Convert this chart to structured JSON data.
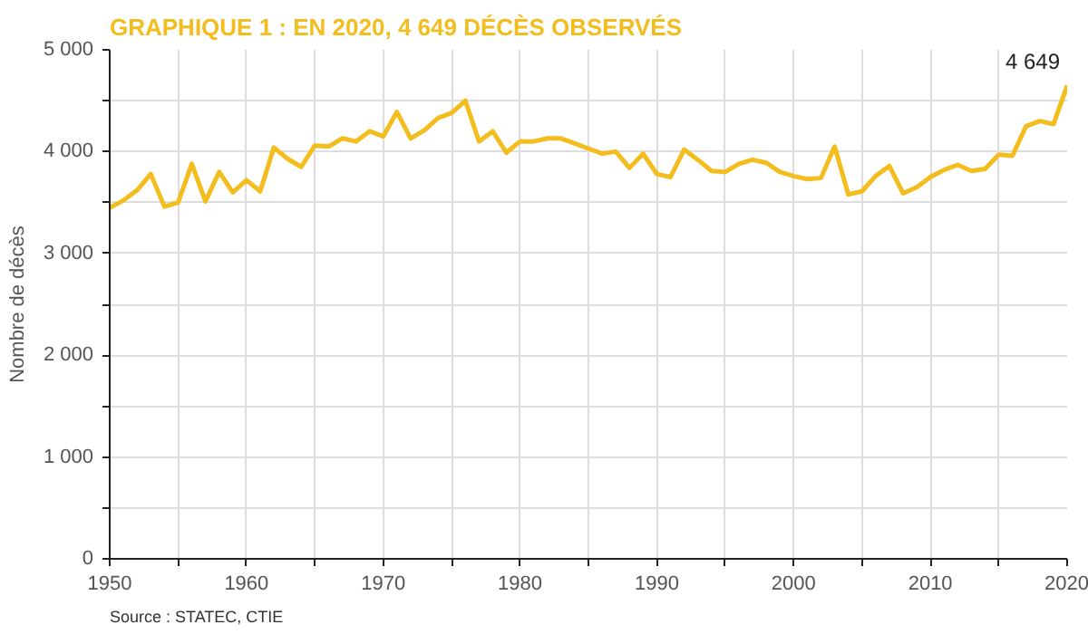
{
  "chart_data": {
    "type": "line",
    "title": "GRAPHIQUE 1 : EN 2020, 4 649 DÉCÈS OBSERVÉS",
    "ylabel": "Nombre de décès",
    "annotations": [
      {
        "text": "4 649",
        "x": 2020,
        "y": 4649
      },
      "Source : STATEC, CTIE"
    ],
    "x": [
      1950,
      1951,
      1952,
      1953,
      1954,
      1955,
      1956,
      1957,
      1958,
      1959,
      1960,
      1961,
      1962,
      1963,
      1964,
      1965,
      1966,
      1967,
      1968,
      1969,
      1970,
      1971,
      1972,
      1973,
      1974,
      1975,
      1976,
      1977,
      1978,
      1979,
      1980,
      1981,
      1982,
      1983,
      1984,
      1985,
      1986,
      1987,
      1988,
      1989,
      1990,
      1991,
      1992,
      1993,
      1994,
      1995,
      1996,
      1997,
      1998,
      1999,
      2000,
      2001,
      2002,
      2003,
      2004,
      2005,
      2006,
      2007,
      2008,
      2009,
      2010,
      2011,
      2012,
      2013,
      2014,
      2015,
      2016,
      2017,
      2018,
      2019,
      2020
    ],
    "series": [
      {
        "color": "#f2bd1d",
        "values": [
          3450,
          3520,
          3620,
          3780,
          3460,
          3500,
          3880,
          3510,
          3800,
          3600,
          3720,
          3610,
          4040,
          3930,
          3850,
          4060,
          4050,
          4130,
          4100,
          4200,
          4150,
          4390,
          4130,
          4210,
          4330,
          4380,
          4500,
          4100,
          4200,
          3990,
          4100,
          4100,
          4130,
          4130,
          4080,
          4030,
          3980,
          4000,
          3840,
          3980,
          3780,
          3750,
          4020,
          3920,
          3810,
          3800,
          3880,
          3920,
          3890,
          3800,
          3760,
          3730,
          3740,
          4050,
          3580,
          3610,
          3760,
          3860,
          3590,
          3650,
          3750,
          3820,
          3870,
          3810,
          3830,
          3970,
          3960,
          4250,
          4300,
          4270,
          4649
        ]
      }
    ],
    "xlim": [
      1950,
      2020
    ],
    "xticks": [
      1950,
      {
        "value": 1955,
        "label": null
      },
      1960,
      {
        "value": 1965,
        "label": null
      },
      1970,
      {
        "value": 1975,
        "label": null
      },
      1980,
      {
        "value": 1985,
        "label": null
      },
      1990,
      {
        "value": 1995,
        "label": null
      },
      2000,
      {
        "value": 2005,
        "label": null
      },
      2010,
      {
        "value": 2015,
        "label": null
      },
      2020
    ],
    "ylim": [
      0,
      5000
    ],
    "yticks": [
      {
        "value": 0,
        "label": "0"
      },
      {
        "value": 500,
        "label": null
      },
      {
        "value": 1000,
        "label": "1 000"
      },
      {
        "value": 1500,
        "label": null
      },
      {
        "value": 2000,
        "label": "2 000"
      },
      {
        "value": 2500,
        "label": null
      },
      {
        "value": 3000,
        "label": "3 000"
      },
      {
        "value": 3500,
        "label": null
      },
      {
        "value": 4000,
        "label": "4 000"
      },
      {
        "value": 4500,
        "label": null
      },
      {
        "value": 5000,
        "label": "5 000"
      }
    ],
    "grid": true,
    "line_style": "solid"
  }
}
